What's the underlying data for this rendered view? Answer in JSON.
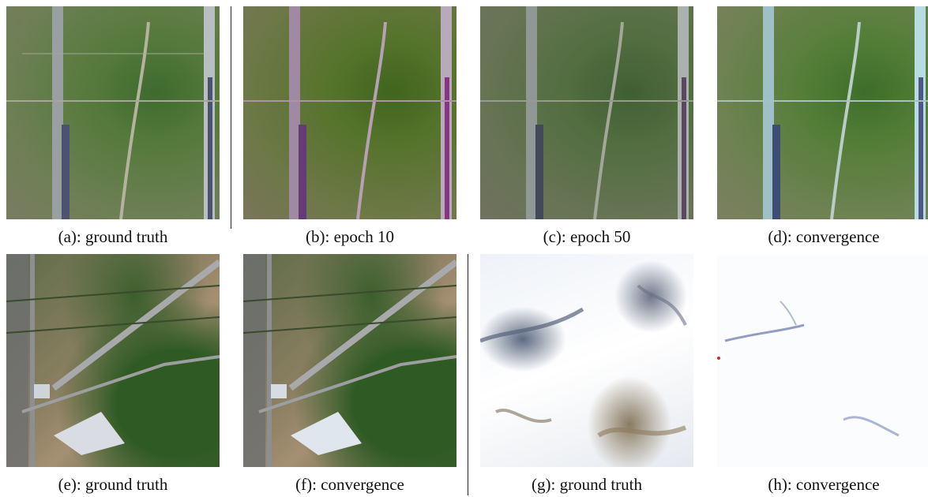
{
  "panels": [
    {
      "id": "a",
      "caption": "(a): ground truth"
    },
    {
      "id": "b",
      "caption": "(b): epoch 10"
    },
    {
      "id": "c",
      "caption": "(c): epoch 50"
    },
    {
      "id": "d",
      "caption": "(d): convergence"
    },
    {
      "id": "e",
      "caption": "(e): ground truth"
    },
    {
      "id": "f",
      "caption": "(f): convergence"
    },
    {
      "id": "g",
      "caption": "(g): ground truth"
    },
    {
      "id": "h",
      "caption": "(h): convergence"
    }
  ]
}
